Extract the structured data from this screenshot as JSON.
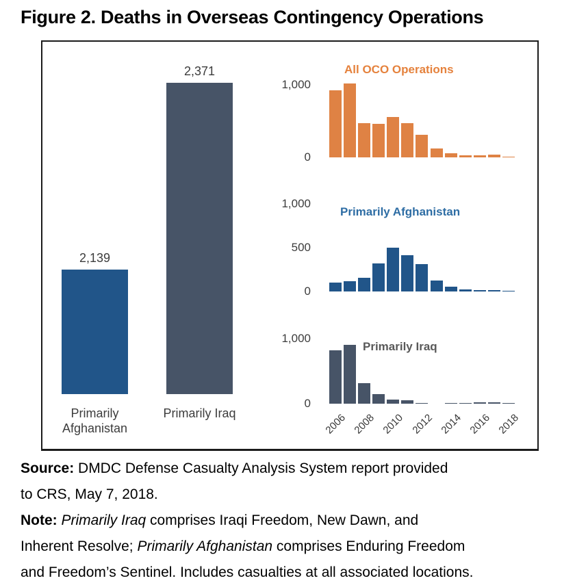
{
  "title": "Figure 2. Deaths in Overseas Contingency Operations",
  "colors": {
    "oco_orange": "#DF8244",
    "afghanistan_blue": "#215589",
    "iraq_gray": "#475467",
    "oco_title": "#E5823D",
    "afghanistan_title": "#2E6DA4",
    "iraq_title": "#595959"
  },
  "chart_data": [
    {
      "type": "bar",
      "title": "",
      "categories": [
        "Primarily Afghanistan",
        "Primarily Iraq"
      ],
      "values": [
        2139,
        2371
      ],
      "data_labels": [
        "2,139",
        "2,371"
      ],
      "bar_colors": [
        "#215589",
        "#475467"
      ],
      "xlabel": "",
      "ylabel": "",
      "ylim": [
        2000,
        2400
      ],
      "grid": false,
      "legend": false
    },
    {
      "type": "bar",
      "title": "All OCO Operations",
      "x": [
        2006,
        2007,
        2008,
        2009,
        2010,
        2011,
        2012,
        2013,
        2014,
        2015,
        2016,
        2017,
        2018
      ],
      "values": [
        920,
        1021,
        469,
        466,
        559,
        472,
        311,
        127,
        58,
        28,
        31,
        38,
        8
      ],
      "color": "#DF8244",
      "yticks": [
        {
          "label": "1,000",
          "value": 1000
        },
        {
          "label": "0",
          "value": 0
        }
      ],
      "xlabel": "",
      "ylabel": "",
      "ylim": [
        0,
        1100
      ],
      "grid": false,
      "legend": false
    },
    {
      "type": "bar",
      "title": "Primarily Afghanistan",
      "x": [
        2006,
        2007,
        2008,
        2009,
        2010,
        2011,
        2012,
        2013,
        2014,
        2015,
        2016,
        2017,
        2018
      ],
      "values": [
        98,
        117,
        155,
        317,
        499,
        418,
        310,
        127,
        55,
        22,
        14,
        17,
        3
      ],
      "color": "#215589",
      "yticks": [
        {
          "label": "1,000",
          "value": 1000
        },
        {
          "label": "500",
          "value": 500
        },
        {
          "label": "0",
          "value": 0
        }
      ],
      "xlabel": "",
      "ylabel": "",
      "ylim": [
        0,
        1000
      ],
      "grid": false,
      "legend": false
    },
    {
      "type": "bar",
      "title": "Primarily Iraq",
      "x": [
        2006,
        2007,
        2008,
        2009,
        2010,
        2011,
        2012,
        2013,
        2014,
        2015,
        2016,
        2017,
        2018
      ],
      "values": [
        822,
        904,
        314,
        149,
        60,
        54,
        1,
        0,
        3,
        6,
        17,
        21,
        5
      ],
      "color": "#475467",
      "yticks": [
        {
          "label": "1,000",
          "value": 1000
        },
        {
          "label": "0",
          "value": 0
        }
      ],
      "xlabel": "",
      "ylabel": "",
      "ylim": [
        0,
        1000
      ],
      "grid": false,
      "legend": false
    }
  ],
  "x_axis_years": [
    "2006",
    "2008",
    "2010",
    "2012",
    "2014",
    "2016",
    "2018"
  ],
  "source": {
    "label": "Source:",
    "l1": " DMDC Defense Casualty Analysis System report provided",
    "l2": "to CRS, May 7, 2018."
  },
  "note": {
    "label": "Note:",
    "l1_italic": "Primarily Iraq",
    "l1_rest": " comprises Iraqi Freedom, New Dawn, and",
    "l2_pre": "Inherent Resolve; ",
    "l2_italic": "Primarily Afghanistan",
    "l2_rest": " comprises Enduring Freedom",
    "l3": "and Freedom’s Sentinel. Includes casualties at all associated locations."
  }
}
